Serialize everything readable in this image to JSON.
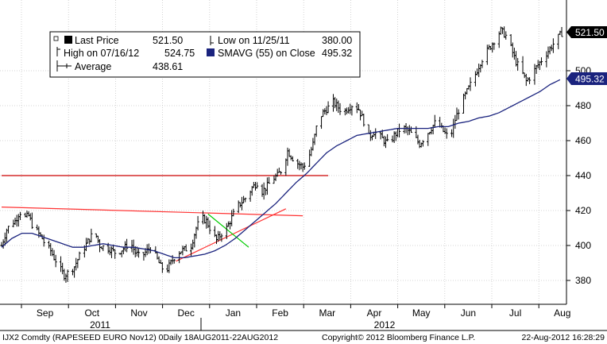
{
  "chart_data": {
    "type": "bar",
    "subtype": "ohlc",
    "ylim": [
      370,
      530
    ],
    "y_ticks": [
      380,
      400,
      420,
      440,
      460,
      480,
      500
    ],
    "grid": true,
    "months": [
      "Sep",
      "Oct",
      "Nov",
      "Dec",
      "Jan",
      "Feb",
      "Mar",
      "Apr",
      "May",
      "Jun",
      "Jul",
      "Aug"
    ],
    "years": [
      "2011",
      "2012"
    ],
    "legend": {
      "last_price_label": "Last Price",
      "last_price_value": "521.50",
      "high_label": "High on 07/16/12",
      "high_value": "524.75",
      "average_label": "Average",
      "average_value": "438.61",
      "low_label": "Low on 11/25/11",
      "low_value": "380.00",
      "smavg_label": "SMAVG (55) on Close",
      "smavg_value": "495.32"
    },
    "last_price_tag": "521.50",
    "smavg_tag": "495.32",
    "price_keypoints": [
      [
        0,
        400
      ],
      [
        3,
        409
      ],
      [
        6,
        413
      ],
      [
        8,
        414
      ],
      [
        10,
        418
      ],
      [
        12,
        420
      ],
      [
        14,
        416
      ],
      [
        16,
        417
      ],
      [
        18,
        412
      ],
      [
        21,
        408
      ],
      [
        24,
        404
      ],
      [
        26,
        400
      ],
      [
        29,
        397
      ],
      [
        31,
        393
      ],
      [
        33,
        390
      ],
      [
        35,
        386
      ],
      [
        37,
        383
      ],
      [
        40,
        385
      ],
      [
        43,
        388
      ],
      [
        46,
        394
      ],
      [
        49,
        399
      ],
      [
        52,
        404
      ],
      [
        55,
        408
      ],
      [
        58,
        400
      ],
      [
        61,
        399
      ],
      [
        64,
        398
      ],
      [
        67,
        396
      ],
      [
        70,
        397
      ],
      [
        73,
        399
      ],
      [
        76,
        402
      ],
      [
        79,
        396
      ],
      [
        82,
        393
      ],
      [
        85,
        396
      ],
      [
        88,
        399
      ],
      [
        91,
        394
      ],
      [
        94,
        388
      ],
      [
        97,
        385
      ],
      [
        100,
        390
      ],
      [
        103,
        395
      ],
      [
        106,
        397
      ],
      [
        109,
        398
      ],
      [
        112,
        400
      ],
      [
        115,
        410
      ],
      [
        118,
        416
      ],
      [
        121,
        414
      ],
      [
        124,
        408
      ],
      [
        127,
        403
      ],
      [
        130,
        407
      ],
      [
        133,
        410
      ],
      [
        136,
        416
      ],
      [
        139,
        422
      ],
      [
        142,
        425
      ],
      [
        145,
        428
      ],
      [
        148,
        433
      ],
      [
        151,
        436
      ],
      [
        154,
        431
      ],
      [
        157,
        434
      ],
      [
        160,
        438
      ],
      [
        163,
        440
      ],
      [
        166,
        444
      ],
      [
        169,
        454
      ],
      [
        172,
        450
      ],
      [
        175,
        447
      ],
      [
        178,
        445
      ],
      [
        181,
        449
      ],
      [
        184,
        458
      ],
      [
        187,
        472
      ],
      [
        190,
        476
      ],
      [
        193,
        479
      ],
      [
        196,
        482
      ],
      [
        199,
        479
      ],
      [
        202,
        476
      ],
      [
        205,
        479
      ],
      [
        208,
        481
      ],
      [
        211,
        478
      ],
      [
        214,
        471
      ],
      [
        217,
        462
      ],
      [
        220,
        465
      ],
      [
        223,
        463
      ],
      [
        226,
        460
      ],
      [
        229,
        458
      ],
      [
        232,
        463
      ],
      [
        235,
        466
      ],
      [
        238,
        467
      ],
      [
        241,
        465
      ],
      [
        244,
        462
      ],
      [
        247,
        458
      ],
      [
        250,
        462
      ],
      [
        253,
        466
      ],
      [
        256,
        470
      ],
      [
        259,
        468
      ],
      [
        262,
        464
      ],
      [
        265,
        461
      ],
      [
        268,
        472
      ],
      [
        271,
        480
      ],
      [
        274,
        486
      ],
      [
        277,
        492
      ],
      [
        280,
        498
      ],
      [
        283,
        505
      ],
      [
        286,
        510
      ],
      [
        289,
        514
      ],
      [
        292,
        519
      ],
      [
        295,
        523
      ],
      [
        298,
        520
      ],
      [
        301,
        513
      ],
      [
        304,
        505
      ],
      [
        307,
        500
      ],
      [
        310,
        494
      ],
      [
        313,
        497
      ],
      [
        316,
        502
      ],
      [
        319,
        506
      ],
      [
        322,
        510
      ],
      [
        325,
        514
      ],
      [
        328,
        518
      ],
      [
        331,
        521.5
      ]
    ],
    "smavg_keypoints": [
      [
        0,
        399
      ],
      [
        6,
        404
      ],
      [
        12,
        407
      ],
      [
        18,
        407
      ],
      [
        24,
        405
      ],
      [
        30,
        403
      ],
      [
        36,
        401
      ],
      [
        42,
        399
      ],
      [
        48,
        399
      ],
      [
        54,
        400
      ],
      [
        60,
        401
      ],
      [
        66,
        400
      ],
      [
        72,
        399
      ],
      [
        78,
        399
      ],
      [
        84,
        398
      ],
      [
        90,
        397
      ],
      [
        96,
        395
      ],
      [
        102,
        393
      ],
      [
        108,
        393
      ],
      [
        114,
        394
      ],
      [
        120,
        395
      ],
      [
        126,
        397
      ],
      [
        132,
        400
      ],
      [
        138,
        404
      ],
      [
        144,
        409
      ],
      [
        150,
        414
      ],
      [
        156,
        419
      ],
      [
        162,
        424
      ],
      [
        168,
        430
      ],
      [
        174,
        436
      ],
      [
        180,
        441
      ],
      [
        186,
        447
      ],
      [
        192,
        453
      ],
      [
        198,
        457
      ],
      [
        204,
        460
      ],
      [
        210,
        463
      ],
      [
        216,
        464
      ],
      [
        222,
        465
      ],
      [
        228,
        466
      ],
      [
        234,
        467
      ],
      [
        240,
        467
      ],
      [
        246,
        467
      ],
      [
        252,
        467
      ],
      [
        258,
        468
      ],
      [
        264,
        468
      ],
      [
        270,
        470
      ],
      [
        276,
        471
      ],
      [
        282,
        473
      ],
      [
        288,
        474
      ],
      [
        294,
        476
      ],
      [
        300,
        479
      ],
      [
        306,
        482
      ],
      [
        312,
        485
      ],
      [
        318,
        488
      ],
      [
        324,
        492
      ],
      [
        331,
        495.32
      ]
    ],
    "annotations": [
      {
        "name": "resistance-line",
        "color": "#cc0000",
        "points": [
          [
            0,
            440
          ],
          [
            193,
            440
          ]
        ]
      },
      {
        "name": "falling-trendline",
        "color": "#ff3333",
        "points": [
          [
            0,
            422
          ],
          [
            178,
            417
          ]
        ]
      },
      {
        "name": "rising-trendline",
        "color": "#ff3333",
        "points": [
          [
            103,
            391
          ],
          [
            168,
            421
          ]
        ]
      },
      {
        "name": "green-channel-line",
        "color": "#00cc00",
        "points": [
          [
            122,
            418
          ],
          [
            146,
            399
          ]
        ]
      }
    ],
    "footer": {
      "left": "IJX2 Comdty (RAPESEED  EURO   Nov12) 0Daily 18AUG2011-22AUG2012",
      "center": "Copyright© 2012 Bloomberg Finance L.P.",
      "right": "22-Aug-2012 16:28:29"
    }
  }
}
